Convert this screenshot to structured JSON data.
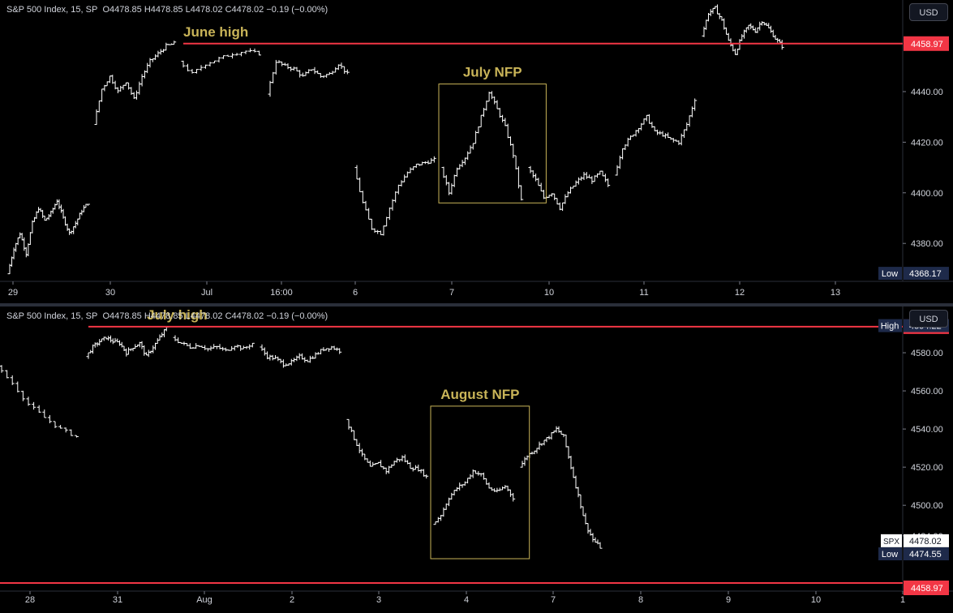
{
  "panes": [
    {
      "legend": {
        "symbol": "S&P 500 Index, 15, SP",
        "o": "O4478.85",
        "h": "H4478.85",
        "l": "L4478.02",
        "c": "C4478.02",
        "chg": "−0.19 (−0.00%)"
      },
      "currency": "USD",
      "colors": {
        "bars": "#ffffff",
        "level": "#f23645",
        "annotation": "#c9b458",
        "box": "#c9b458"
      },
      "yaxis": {
        "min": 4365,
        "max": 4473,
        "ticks": [
          4380,
          4400,
          4420,
          4440
        ],
        "tick_labels": [
          "4380.00",
          "4400.00",
          "4420.00",
          "4440.00"
        ]
      },
      "xaxis": {
        "labels": [
          "29",
          "30",
          "Jul",
          "16:00",
          "6",
          "7",
          "10",
          "11",
          "12",
          "13"
        ]
      },
      "level": {
        "value": 4458.97,
        "label": "4458.97",
        "from_day": 2
      },
      "low_badge": {
        "text": "Low",
        "value": "4368.17",
        "price": 4368.17
      },
      "annotations": {
        "level_text": "June high",
        "box_text": "July NFP"
      },
      "box": {
        "from_day": 5,
        "to_day": 6.2,
        "low": 4396,
        "high": 4443
      },
      "chart_data": {
        "type": "bar",
        "title": "S&P 500 Index, 15, SP",
        "xlabel": "",
        "ylabel": "",
        "ylim": [
          4365,
          4473
        ],
        "days": [
          "Jun 29",
          "Jun 30",
          "Jul 3",
          "Jul 5",
          "Jul 6",
          "Jul 7",
          "Jul 10",
          "Jul 11",
          "Jul 12",
          "Jul 13"
        ],
        "day_paths": [
          [
            4368,
            4378,
            4384,
            4376,
            4388,
            4394,
            4389,
            4392,
            4397,
            4390,
            4384,
            4388,
            4393,
            4396
          ],
          [
            4427,
            4441,
            4446,
            4440,
            4444,
            4437,
            4446,
            4452,
            4455,
            4458,
            4459
          ],
          [
            4452,
            4447,
            4451,
            4453,
            4455,
            4456,
            4455
          ],
          [
            4439,
            4452,
            4450,
            4449,
            4446,
            4449,
            4446,
            4447,
            4451,
            4447
          ],
          [
            4410,
            4396,
            4386,
            4384,
            4394,
            4403,
            4408,
            4411,
            4412,
            4413
          ],
          [
            4410,
            4400,
            4410,
            4414,
            4420,
            4430,
            4440,
            4433,
            4426,
            4415,
            4397
          ],
          [
            4410,
            4405,
            4398,
            4400,
            4394,
            4400,
            4404,
            4407,
            4405,
            4408,
            4403
          ],
          [
            4407,
            4418,
            4422,
            4426,
            4430,
            4424,
            4423,
            4421,
            4420,
            4427,
            4437
          ],
          [
            4462,
            4471,
            4473,
            4468,
            4460,
            4455,
            4462,
            4466,
            4464,
            4468,
            4465,
            4461,
            4458
          ],
          []
        ]
      }
    },
    {
      "legend": {
        "symbol": "S&P 500 Index, 15, SP",
        "o": "O4478.85",
        "h": "H4478.85",
        "l": "L4478.02",
        "c": "C4478.02",
        "chg": "−0.19 (−0.00%)"
      },
      "currency": "USD",
      "colors": {
        "bars": "#ffffff",
        "level": "#f23645",
        "annotation": "#c9b458",
        "box": "#c9b458"
      },
      "yaxis": {
        "min": 4455,
        "max": 4600,
        "ticks": [
          4484,
          4500,
          4520,
          4540,
          4560,
          4580
        ],
        "tick_labels": [
          "4484.00",
          "4500.00",
          "4520.00",
          "4540.00",
          "4560.00",
          "4580.00"
        ]
      },
      "xaxis": {
        "labels": [
          "28",
          "31",
          "Aug",
          "2",
          "3",
          "4",
          "7",
          "8",
          "9",
          "10",
          "1"
        ]
      },
      "level": {
        "value": 4593.7,
        "label": "4593.70",
        "from_day": 1
      },
      "level2": {
        "value": 4458.97,
        "label": "4458.97"
      },
      "high_badge": {
        "text": "High",
        "value": "4594.22",
        "price": 4594.22
      },
      "low_badge": {
        "text": "Low",
        "value": "4474.55",
        "price": 4474.55
      },
      "spx_badge": {
        "text": "SPX",
        "value": "4478.02",
        "price": 4478.02
      },
      "annotations": {
        "level_text": "July high",
        "box_text": "August NFP"
      },
      "box": {
        "from_day": 5,
        "to_day": 6.1,
        "low": 4472,
        "high": 4552
      },
      "chart_data": {
        "type": "bar",
        "title": "S&P 500 Index, 15, SP",
        "xlabel": "",
        "ylabel": "",
        "ylim": [
          4455,
          4600
        ],
        "days": [
          "Jul 28",
          "Jul 31",
          "Aug 1",
          "Aug 2",
          "Aug 3",
          "Aug 4",
          "Aug 7",
          "Aug 8",
          "Aug 9",
          "Aug 10"
        ],
        "day_paths": [
          [
            4573,
            4564,
            4553,
            4546,
            4540,
            4536
          ],
          [
            4578,
            4583,
            4586,
            4588,
            4586,
            4585,
            4580,
            4583,
            4585,
            4578,
            4583,
            4588,
            4593
          ],
          [
            4588,
            4585,
            4583,
            4584,
            4582,
            4583,
            4581,
            4584,
            4582,
            4585
          ],
          [
            4583,
            4578,
            4577,
            4574,
            4575,
            4578,
            4576,
            4579,
            4582,
            4583,
            4581
          ],
          [
            4545,
            4535,
            4526,
            4520,
            4522,
            4518,
            4523,
            4525,
            4520,
            4519,
            4515
          ],
          [
            4490,
            4495,
            4504,
            4509,
            4512,
            4518,
            4516,
            4509,
            4507,
            4510,
            4504
          ],
          [
            4520,
            4526,
            4529,
            4533,
            4536,
            4540,
            4536,
            4520,
            4505,
            4490,
            4482,
            4478
          ],
          [],
          [],
          []
        ]
      }
    }
  ]
}
